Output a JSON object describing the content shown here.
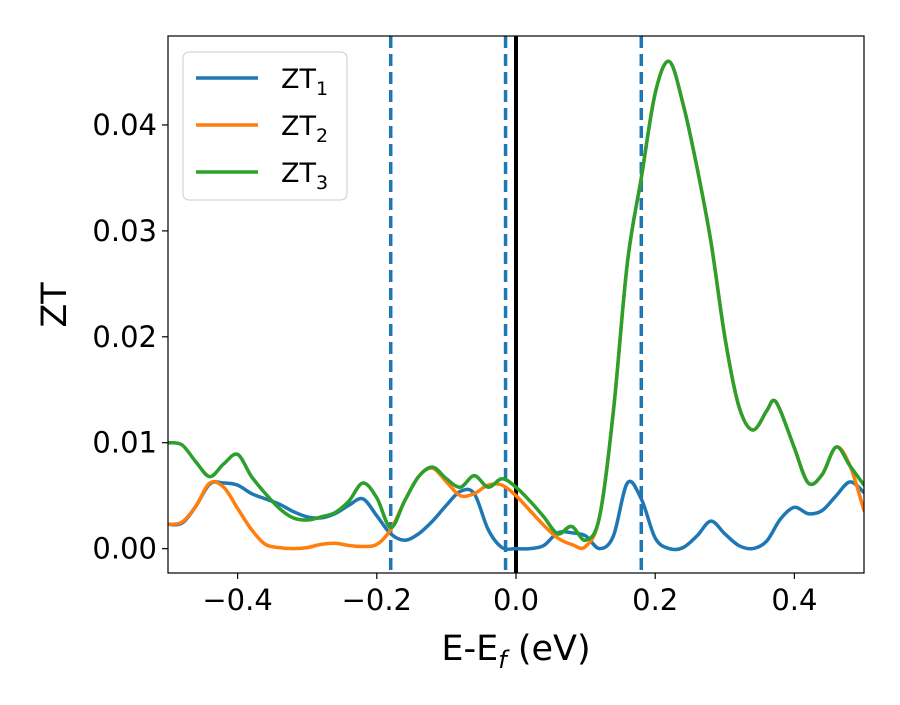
{
  "chart_data": {
    "type": "line",
    "xlabel": "E-E",
    "xlabel_subscript": "f",
    "xlabel_unit": " (eV)",
    "ylabel": "ZT",
    "xlim": [
      -0.5,
      0.5
    ],
    "ylim": [
      -0.0023,
      0.0484
    ],
    "xticks": [
      -0.4,
      -0.2,
      0.0,
      0.2,
      0.4
    ],
    "xtick_labels": [
      "−0.4",
      "−0.2",
      "0.0",
      "0.2",
      "0.4"
    ],
    "yticks": [
      0.0,
      0.01,
      0.02,
      0.03,
      0.04
    ],
    "ytick_labels": [
      "0.00",
      "0.01",
      "0.02",
      "0.03",
      "0.04"
    ],
    "grid": false,
    "legend_position": "top-left",
    "vlines": [
      {
        "x": -0.18,
        "style": "dashed",
        "color": "#1f77b4"
      },
      {
        "x": -0.015,
        "style": "dashed",
        "color": "#1f77b4"
      },
      {
        "x": 0.18,
        "style": "dashed",
        "color": "#1f77b4"
      },
      {
        "x": 0.0,
        "style": "solid",
        "color": "#000000"
      }
    ],
    "series": [
      {
        "name": "ZT",
        "subscript": "1",
        "color": "#1f77b4",
        "points": [
          [
            -0.5,
            0.0023
          ],
          [
            -0.48,
            0.0024
          ],
          [
            -0.46,
            0.004
          ],
          [
            -0.44,
            0.0061
          ],
          [
            -0.42,
            0.0062
          ],
          [
            -0.4,
            0.006
          ],
          [
            -0.38,
            0.0052
          ],
          [
            -0.36,
            0.0047
          ],
          [
            -0.34,
            0.0042
          ],
          [
            -0.32,
            0.0035
          ],
          [
            -0.3,
            0.003
          ],
          [
            -0.28,
            0.0029
          ],
          [
            -0.26,
            0.0033
          ],
          [
            -0.24,
            0.0041
          ],
          [
            -0.22,
            0.0047
          ],
          [
            -0.2,
            0.0031
          ],
          [
            -0.18,
            0.0014
          ],
          [
            -0.16,
            0.0008
          ],
          [
            -0.14,
            0.0014
          ],
          [
            -0.12,
            0.0026
          ],
          [
            -0.1,
            0.0041
          ],
          [
            -0.08,
            0.0054
          ],
          [
            -0.06,
            0.0052
          ],
          [
            -0.04,
            0.0018
          ],
          [
            -0.02,
            0.0001
          ],
          [
            0.0,
            0.0
          ],
          [
            0.02,
            0.0
          ],
          [
            0.04,
            0.0003
          ],
          [
            0.06,
            0.0015
          ],
          [
            0.08,
            0.0015
          ],
          [
            0.1,
            0.0012
          ],
          [
            0.12,
            0.0
          ],
          [
            0.14,
            0.0012
          ],
          [
            0.16,
            0.0062
          ],
          [
            0.18,
            0.0047
          ],
          [
            0.2,
            0.001
          ],
          [
            0.22,
            0.0
          ],
          [
            0.24,
            0.0001
          ],
          [
            0.26,
            0.0012
          ],
          [
            0.28,
            0.0026
          ],
          [
            0.3,
            0.0014
          ],
          [
            0.32,
            0.0003
          ],
          [
            0.34,
            0.0
          ],
          [
            0.36,
            0.0007
          ],
          [
            0.38,
            0.0028
          ],
          [
            0.4,
            0.0039
          ],
          [
            0.42,
            0.0033
          ],
          [
            0.44,
            0.0036
          ],
          [
            0.46,
            0.005
          ],
          [
            0.48,
            0.0063
          ],
          [
            0.5,
            0.0053
          ]
        ]
      },
      {
        "name": "ZT",
        "subscript": "2",
        "color": "#ff7f0e",
        "points": [
          [
            -0.5,
            0.0023
          ],
          [
            -0.48,
            0.0025
          ],
          [
            -0.46,
            0.004
          ],
          [
            -0.44,
            0.0062
          ],
          [
            -0.42,
            0.0058
          ],
          [
            -0.4,
            0.0038
          ],
          [
            -0.38,
            0.0018
          ],
          [
            -0.36,
            0.0004
          ],
          [
            -0.34,
            0.0001
          ],
          [
            -0.32,
            0.0
          ],
          [
            -0.3,
            0.0001
          ],
          [
            -0.28,
            0.0004
          ],
          [
            -0.26,
            0.0005
          ],
          [
            -0.24,
            0.0003
          ],
          [
            -0.22,
            0.0002
          ],
          [
            -0.2,
            0.0004
          ],
          [
            -0.18,
            0.0018
          ],
          [
            -0.16,
            0.0045
          ],
          [
            -0.14,
            0.0068
          ],
          [
            -0.12,
            0.0076
          ],
          [
            -0.1,
            0.0063
          ],
          [
            -0.08,
            0.005
          ],
          [
            -0.06,
            0.0052
          ],
          [
            -0.04,
            0.006
          ],
          [
            -0.02,
            0.006
          ],
          [
            0.0,
            0.005
          ],
          [
            0.02,
            0.0036
          ],
          [
            0.04,
            0.0022
          ],
          [
            0.06,
            0.001
          ],
          [
            0.08,
            0.0004
          ],
          [
            0.1,
            0.0002
          ],
          [
            0.12,
            0.003
          ],
          [
            0.14,
            0.013
          ],
          [
            0.16,
            0.027
          ],
          [
            0.18,
            0.035
          ],
          [
            0.2,
            0.043
          ],
          [
            0.22,
            0.046
          ],
          [
            0.24,
            0.042
          ],
          [
            0.26,
            0.036
          ],
          [
            0.28,
            0.029
          ],
          [
            0.3,
            0.02
          ],
          [
            0.32,
            0.0135
          ],
          [
            0.34,
            0.0112
          ],
          [
            0.36,
            0.013
          ],
          [
            0.37,
            0.014
          ],
          [
            0.38,
            0.013
          ],
          [
            0.4,
            0.0095
          ],
          [
            0.42,
            0.0062
          ],
          [
            0.44,
            0.007
          ],
          [
            0.46,
            0.0096
          ],
          [
            0.48,
            0.0078
          ],
          [
            0.5,
            0.0036
          ]
        ]
      },
      {
        "name": "ZT",
        "subscript": "3",
        "color": "#2ca02c",
        "points": [
          [
            -0.5,
            0.01
          ],
          [
            -0.48,
            0.0098
          ],
          [
            -0.46,
            0.0082
          ],
          [
            -0.44,
            0.0068
          ],
          [
            -0.42,
            0.008
          ],
          [
            -0.4,
            0.0089
          ],
          [
            -0.38,
            0.0068
          ],
          [
            -0.36,
            0.0052
          ],
          [
            -0.34,
            0.0038
          ],
          [
            -0.32,
            0.0029
          ],
          [
            -0.3,
            0.0027
          ],
          [
            -0.28,
            0.003
          ],
          [
            -0.26,
            0.0034
          ],
          [
            -0.24,
            0.0045
          ],
          [
            -0.22,
            0.0062
          ],
          [
            -0.2,
            0.0048
          ],
          [
            -0.18,
            0.002
          ],
          [
            -0.16,
            0.0045
          ],
          [
            -0.14,
            0.0068
          ],
          [
            -0.12,
            0.0077
          ],
          [
            -0.1,
            0.0066
          ],
          [
            -0.08,
            0.0058
          ],
          [
            -0.06,
            0.0069
          ],
          [
            -0.04,
            0.0058
          ],
          [
            -0.02,
            0.0066
          ],
          [
            0.0,
            0.0058
          ],
          [
            0.02,
            0.0045
          ],
          [
            0.04,
            0.003
          ],
          [
            0.06,
            0.0014
          ],
          [
            0.08,
            0.0021
          ],
          [
            0.1,
            0.0008
          ],
          [
            0.12,
            0.003
          ],
          [
            0.14,
            0.013
          ],
          [
            0.16,
            0.027
          ],
          [
            0.18,
            0.035
          ],
          [
            0.2,
            0.043
          ],
          [
            0.22,
            0.046
          ],
          [
            0.24,
            0.042
          ],
          [
            0.26,
            0.036
          ],
          [
            0.28,
            0.029
          ],
          [
            0.3,
            0.02
          ],
          [
            0.32,
            0.0135
          ],
          [
            0.34,
            0.0112
          ],
          [
            0.36,
            0.013
          ],
          [
            0.37,
            0.014
          ],
          [
            0.38,
            0.013
          ],
          [
            0.4,
            0.0095
          ],
          [
            0.42,
            0.0062
          ],
          [
            0.44,
            0.007
          ],
          [
            0.46,
            0.0096
          ],
          [
            0.48,
            0.0078
          ],
          [
            0.5,
            0.006
          ]
        ]
      }
    ]
  }
}
